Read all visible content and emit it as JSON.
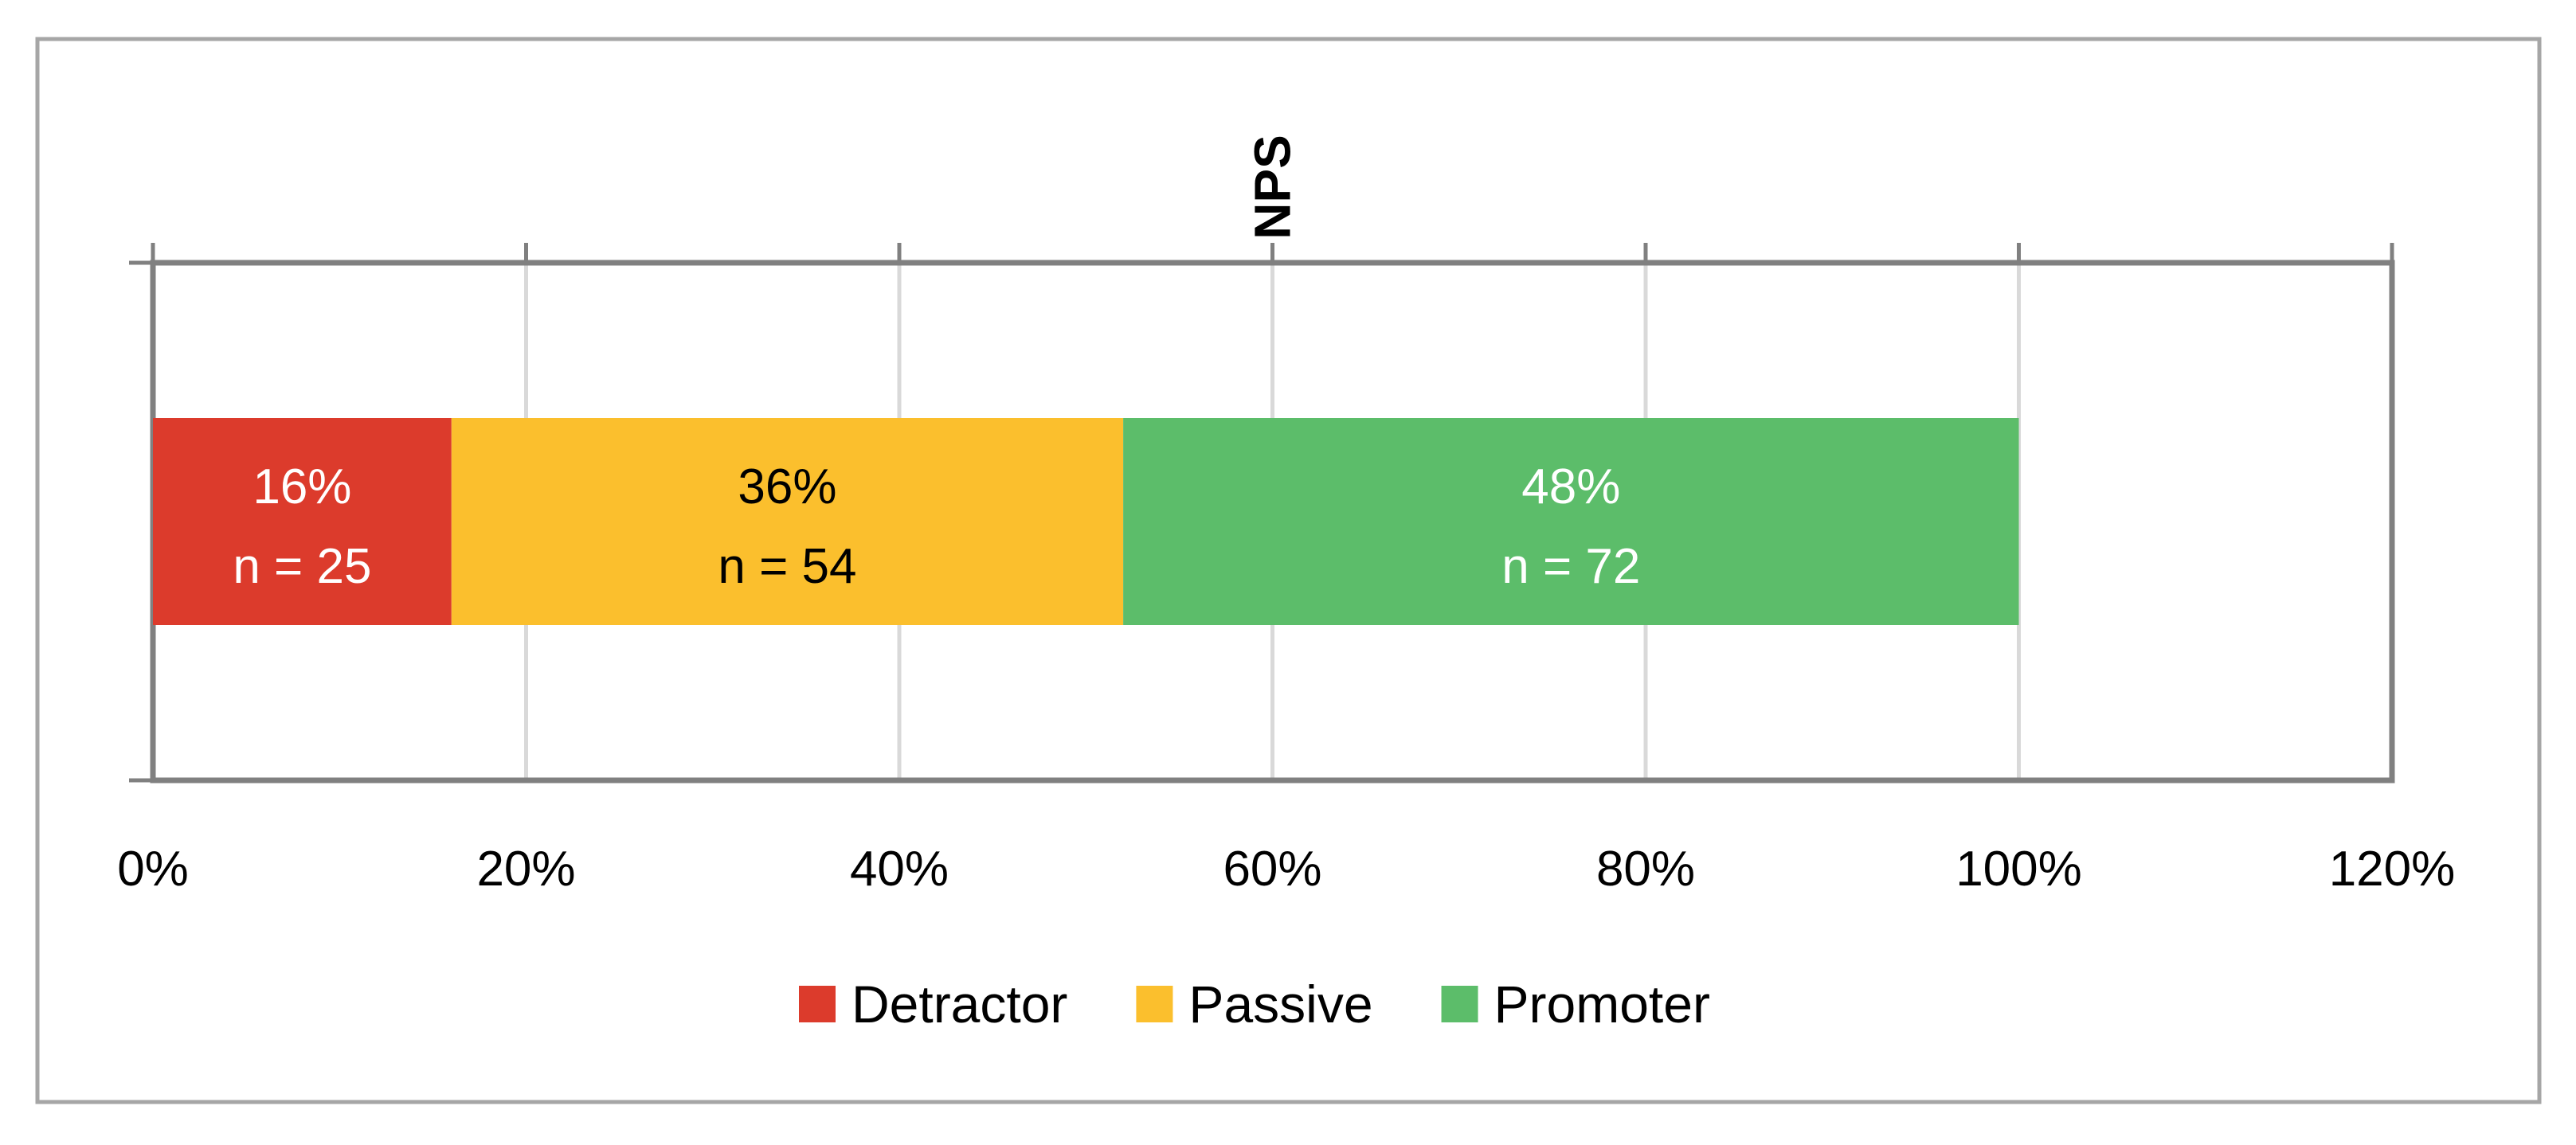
{
  "chart_data": {
    "type": "bar",
    "orientation": "horizontal",
    "stacked": true,
    "axis_title": "NPS",
    "categories": [
      ""
    ],
    "series": [
      {
        "name": "Detractor",
        "values": [
          16
        ],
        "n_label": "n = 25",
        "value_label": "16%",
        "color": "#DC3B2C",
        "label_color": "#ffffff"
      },
      {
        "name": "Passive",
        "values": [
          36
        ],
        "n_label": "n = 54",
        "value_label": "36%",
        "color": "#FBBF2D",
        "label_color": "#000000"
      },
      {
        "name": "Promoter",
        "values": [
          48
        ],
        "n_label": "n = 72",
        "value_label": "48%",
        "color": "#5CBD6A",
        "label_color": "#ffffff"
      }
    ],
    "xlim": [
      0,
      120
    ],
    "x_ticks": [
      0,
      20,
      40,
      60,
      80,
      100,
      120
    ],
    "x_tick_labels": [
      "0%",
      "20%",
      "40%",
      "60%",
      "80%",
      "100%",
      "120%"
    ],
    "grid": true,
    "legend_position": "bottom"
  }
}
